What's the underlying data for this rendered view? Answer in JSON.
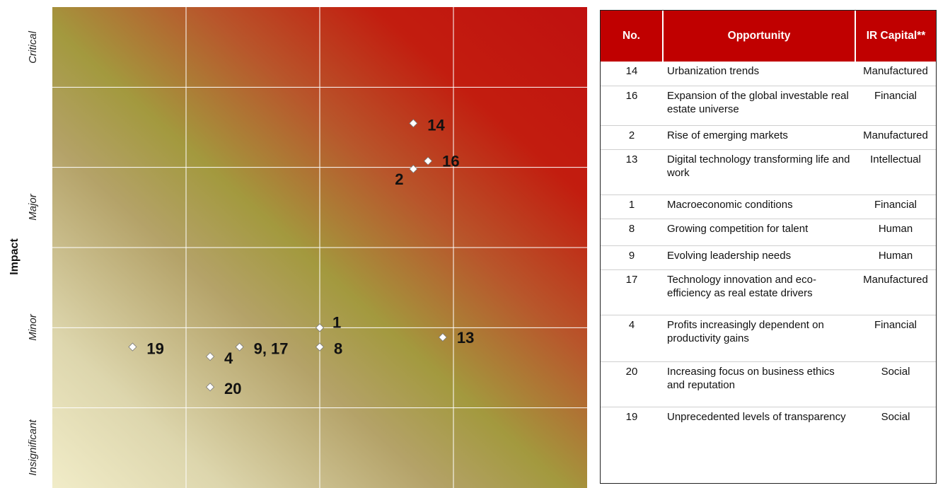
{
  "chart_data": {
    "type": "scatter",
    "ylabel": "Impact",
    "y_categories": [
      "Insignificant",
      "Minor",
      "Major",
      "Critical"
    ],
    "x_divisions": 4,
    "y_divisions": 6,
    "grid": true,
    "xlim": [
      0,
      4
    ],
    "ylim": [
      0,
      6
    ],
    "points": [
      {
        "label": "14",
        "x": 2.7,
        "y": 4.55
      },
      {
        "label": "16",
        "x": 2.81,
        "y": 4.08
      },
      {
        "label": "2",
        "x": 2.7,
        "y": 3.98
      },
      {
        "label": "13",
        "x": 2.92,
        "y": 1.88
      },
      {
        "label": "1",
        "x": 2.0,
        "y": 2.0
      },
      {
        "label": "8",
        "x": 2.0,
        "y": 1.76
      },
      {
        "label": "9, 17",
        "x": 1.4,
        "y": 1.76
      },
      {
        "label": "4",
        "x": 1.18,
        "y": 1.64
      },
      {
        "label": "20",
        "x": 1.18,
        "y": 1.26
      },
      {
        "label": "19",
        "x": 0.6,
        "y": 1.76
      }
    ]
  },
  "table": {
    "headers": [
      "No.",
      "Opportunity",
      "IR Capital**"
    ],
    "rows": [
      {
        "no": "14",
        "opportunity": "Urbanization trends",
        "capital": "Manufactured"
      },
      {
        "no": "16",
        "opportunity": "Expansion of the global investable real estate universe",
        "capital": "Financial"
      },
      {
        "no": "2",
        "opportunity": "Rise of emerging markets",
        "capital": "Manufactured"
      },
      {
        "no": "13",
        "opportunity": "Digital technology transforming life and work",
        "capital": "Intellectual"
      },
      {
        "no": "1",
        "opportunity": "Macroeconomic conditions",
        "capital": "Financial"
      },
      {
        "no": "8",
        "opportunity": "Growing competition for talent",
        "capital": "Human"
      },
      {
        "no": "9",
        "opportunity": "Evolving leadership needs",
        "capital": "Human"
      },
      {
        "no": "17",
        "opportunity": "Technology innovation and eco-efficiency as real estate drivers",
        "capital": "Manufactured"
      },
      {
        "no": "4",
        "opportunity": "Profits increasingly dependent on productivity gains",
        "capital": "Financial"
      },
      {
        "no": "20",
        "opportunity": "Increasing focus on business ethics and reputation",
        "capital": "Social"
      },
      {
        "no": "19",
        "opportunity": "Unprecedented levels of transparency",
        "capital": "Social"
      }
    ]
  },
  "colors": {
    "header_bg": "#c00000",
    "header_text": "#ffffff",
    "high_risk": "#c0100f",
    "low_risk": "#f1ecc8"
  }
}
